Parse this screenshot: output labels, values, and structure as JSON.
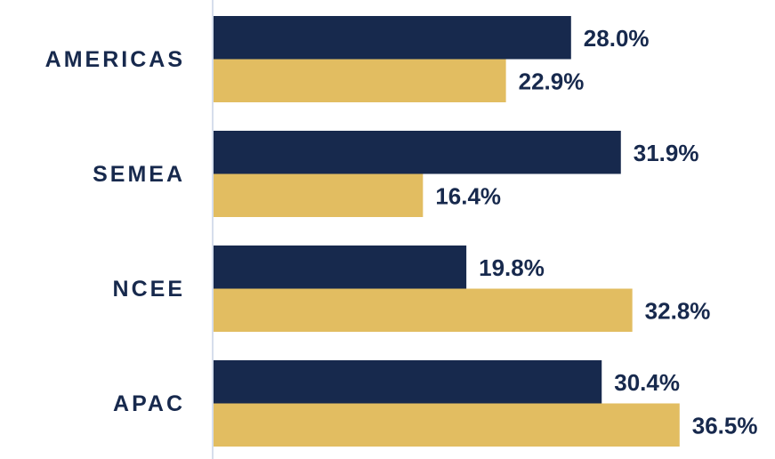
{
  "chart_data": {
    "type": "bar",
    "orientation": "horizontal",
    "categories": [
      "AMERICAS",
      "SEMEA",
      "NCEE",
      "APAC"
    ],
    "series": [
      {
        "color": "#17294d",
        "values": [
          28.0,
          31.9,
          19.8,
          30.4
        ],
        "value_labels": [
          "28.0%",
          "31.9%",
          "19.8%",
          "30.4%"
        ]
      },
      {
        "color": "#e2bd61",
        "values": [
          22.9,
          16.4,
          32.8,
          36.5
        ],
        "value_labels": [
          "22.9%",
          "16.4%",
          "32.8%",
          "36.5%"
        ]
      }
    ]
  }
}
